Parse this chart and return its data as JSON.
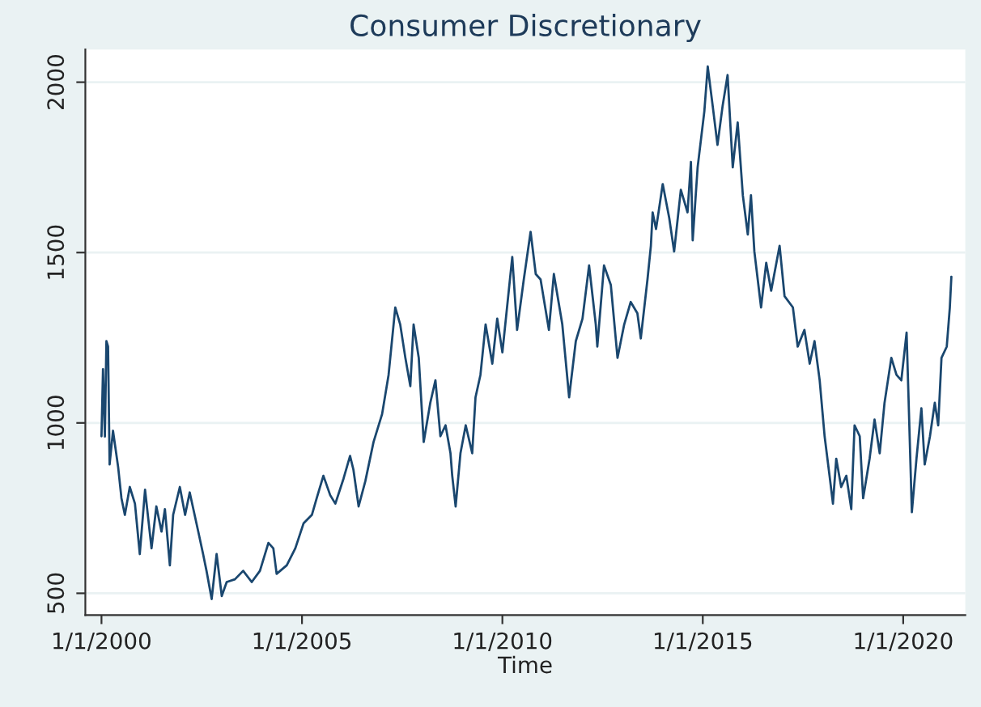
{
  "chart_data": {
    "type": "line",
    "title": "Consumer Discretionary",
    "xlabel": "Time",
    "xlim": [
      "1999-08-07",
      "2021-07-20"
    ],
    "ylim": [
      436,
      2096
    ],
    "xticks": [
      {
        "value": "2000-01-01",
        "label": "1/1/2000"
      },
      {
        "value": "2005-01-01",
        "label": "1/1/2005"
      },
      {
        "value": "2010-01-01",
        "label": "1/1/2010"
      },
      {
        "value": "2015-01-01",
        "label": "1/1/2015"
      },
      {
        "value": "2020-01-01",
        "label": "1/1/2020"
      }
    ],
    "yticks": [
      500,
      1000,
      1500,
      2000
    ],
    "grid": "y",
    "line_style": "solid",
    "marker": "none",
    "series": [
      {
        "color": "#1a476f",
        "x": [
          "2000-01-01",
          "2000-01-15",
          "2000-02-01",
          "2000-02-15",
          "2000-03-01",
          "2000-03-15",
          "2000-04-15",
          "2000-06-01",
          "2000-07-01",
          "2000-08-01",
          "2000-09-15",
          "2000-11-01",
          "2000-12-15",
          "2001-02-01",
          "2001-04-01",
          "2001-05-15",
          "2001-07-01",
          "2001-08-01",
          "2001-09-15",
          "2001-10-15",
          "2001-12-15",
          "2002-02-01",
          "2002-03-15",
          "2002-06-01",
          "2002-07-15",
          "2002-08-15",
          "2002-10-01",
          "2002-11-15",
          "2003-01-01",
          "2003-02-15",
          "2003-05-01",
          "2003-07-15",
          "2003-10-01",
          "2003-12-15",
          "2004-03-01",
          "2004-04-15",
          "2004-05-15",
          "2004-08-15",
          "2004-11-01",
          "2005-01-15",
          "2005-04-01",
          "2005-05-15",
          "2005-07-15",
          "2005-09-15",
          "2005-11-01",
          "2006-01-15",
          "2006-03-15",
          "2006-04-15",
          "2006-06-01",
          "2006-08-01",
          "2006-10-15",
          "2007-01-01",
          "2007-03-01",
          "2007-05-01",
          "2007-06-15",
          "2007-08-01",
          "2007-09-15",
          "2007-10-15",
          "2007-12-01",
          "2008-01-15",
          "2008-03-15",
          "2008-05-01",
          "2008-06-15",
          "2008-08-01",
          "2008-09-15",
          "2008-10-01",
          "2008-11-01",
          "2008-12-15",
          "2009-02-01",
          "2009-04-01",
          "2009-05-01",
          "2009-06-15",
          "2009-08-01",
          "2009-10-01",
          "2009-11-15",
          "2010-01-01",
          "2010-04-01",
          "2010-05-15",
          "2010-07-15",
          "2010-09-15",
          "2010-11-01",
          "2010-12-15",
          "2011-03-01",
          "2011-04-15",
          "2011-07-01",
          "2011-09-01",
          "2011-11-01",
          "2012-01-01",
          "2012-03-01",
          "2012-05-01",
          "2012-05-15",
          "2012-07-15",
          "2012-09-15",
          "2012-11-15",
          "2013-01-15",
          "2013-03-15",
          "2013-05-15",
          "2013-06-15",
          "2013-08-15",
          "2013-09-15",
          "2013-10-01",
          "2013-11-01",
          "2014-01-01",
          "2014-03-01",
          "2014-04-15",
          "2014-06-15",
          "2014-08-15",
          "2014-09-15",
          "2014-10-01",
          "2014-11-15",
          "2015-01-15",
          "2015-02-15",
          "2015-04-01",
          "2015-05-15",
          "2015-07-01",
          "2015-08-15",
          "2015-10-01",
          "2015-11-15",
          "2016-01-01",
          "2016-02-15",
          "2016-03-15",
          "2016-04-15",
          "2016-06-15",
          "2016-08-01",
          "2016-09-15",
          "2016-12-01",
          "2017-01-15",
          "2017-04-01",
          "2017-05-15",
          "2017-07-15",
          "2017-09-01",
          "2017-10-15",
          "2017-12-01",
          "2018-01-15",
          "2018-03-01",
          "2018-04-01",
          "2018-05-01",
          "2018-06-15",
          "2018-08-01",
          "2018-09-15",
          "2018-10-15",
          "2018-12-01",
          "2019-01-01",
          "2019-03-01",
          "2019-04-15",
          "2019-06-01",
          "2019-07-15",
          "2019-09-15",
          "2019-11-01",
          "2019-12-15",
          "2020-02-01",
          "2020-02-20",
          "2020-03-20",
          "2020-05-01",
          "2020-06-15",
          "2020-07-15",
          "2020-09-01",
          "2020-10-15",
          "2020-11-15",
          "2020-12-15",
          "2021-02-01",
          "2021-03-01",
          "2021-03-15"
        ],
        "values": [
          961,
          1158,
          960,
          1240,
          1224,
          878,
          977,
          870,
          779,
          730,
          812,
          763,
          615,
          804,
          632,
          755,
          681,
          747,
          582,
          730,
          812,
          730,
          796,
          681,
          615,
          566,
          483,
          615,
          492,
          533,
          541,
          566,
          533,
          566,
          648,
          632,
          557,
          582,
          632,
          705,
          730,
          779,
          845,
          788,
          763,
          837,
          903,
          862,
          755,
          829,
          944,
          1026,
          1141,
          1339,
          1289,
          1191,
          1108,
          1289,
          1191,
          944,
          1059,
          1125,
          961,
          993,
          911,
          845,
          755,
          911,
          993,
          911,
          1075,
          1141,
          1289,
          1174,
          1306,
          1207,
          1487,
          1273,
          1421,
          1561,
          1437,
          1421,
          1273,
          1437,
          1289,
          1075,
          1240,
          1306,
          1462,
          1289,
          1224,
          1462,
          1405,
          1191,
          1289,
          1355,
          1322,
          1248,
          1421,
          1520,
          1618,
          1569,
          1701,
          1602,
          1503,
          1684,
          1618,
          1766,
          1536,
          1750,
          1914,
          2046,
          1931,
          1816,
          1931,
          2021,
          1750,
          1882,
          1668,
          1553,
          1668,
          1503,
          1339,
          1470,
          1388,
          1520,
          1372,
          1339,
          1224,
          1273,
          1174,
          1240,
          1125,
          961,
          845,
          763,
          895,
          812,
          845,
          747,
          993,
          961,
          779,
          895,
          1010,
          911,
          1059,
          1191,
          1141,
          1125,
          1265,
          1059,
          738,
          895,
          1043,
          878,
          961,
          1059,
          993,
          1191,
          1224,
          1339,
          1429
        ]
      }
    ]
  }
}
